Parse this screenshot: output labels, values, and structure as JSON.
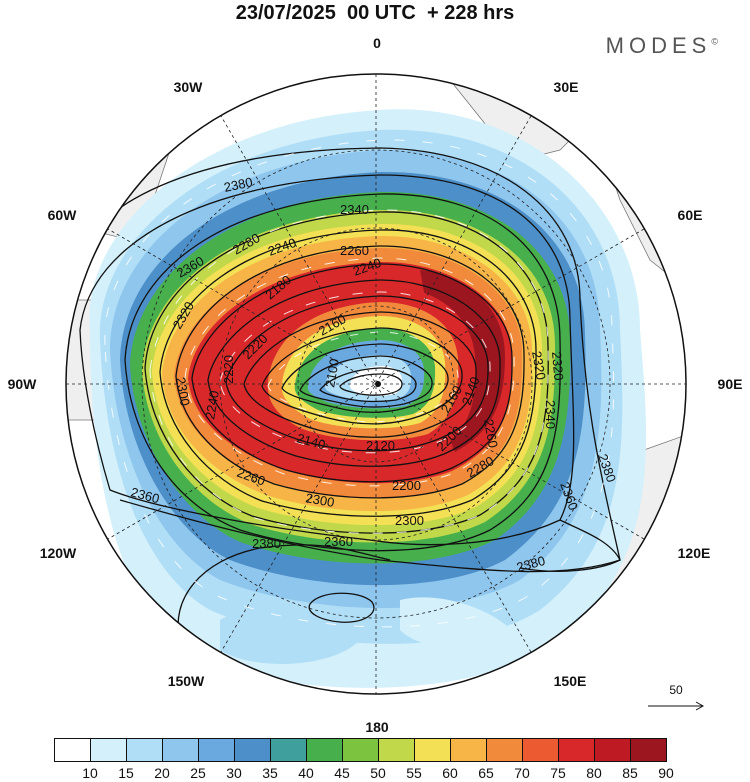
{
  "title": "23/07/2025  00 UTC  + 228 hrs",
  "brand": {
    "name": "MODES",
    "mark": "©"
  },
  "longitude_labels": {
    "lon_0": "0",
    "lon_30e": "30E",
    "lon_60e": "60E",
    "lon_90e": "90E",
    "lon_120e": "120E",
    "lon_150e": "150E",
    "lon_180": "180",
    "lon_150w": "150W",
    "lon_120w": "120W",
    "lon_90w": "90W",
    "lon_60w": "60W",
    "lon_30w": "30W"
  },
  "contour_labels": {
    "c1": "2380",
    "c2": "2360",
    "c3": "2340",
    "c4": "2320",
    "c5": "2300",
    "c6": "2280",
    "c7": "2260",
    "c8": "2240",
    "c9": "2220",
    "c10": "2200",
    "c11": "2180",
    "c12": "2160",
    "c13": "2140",
    "c14": "2120",
    "c15": "2100",
    "c16": "2380",
    "c17": "2380",
    "c18": "2380",
    "c19": "2360",
    "c20": "2360",
    "c21": "2340",
    "c22": "2320",
    "c23": "2300",
    "c24": "2260",
    "c25": "2240",
    "c26": "2220",
    "c27": "2200",
    "c28": "2160",
    "c29": "2140",
    "c30": "2260",
    "c31": "2280",
    "c32": "2240",
    "c33": "2360",
    "c34": "2320",
    "c35": "2300"
  },
  "reference_vector": {
    "label": "50"
  },
  "colorbar": {
    "ticks": [
      "10",
      "15",
      "20",
      "25",
      "30",
      "35",
      "40",
      "45",
      "50",
      "55",
      "60",
      "65",
      "70",
      "75",
      "80",
      "85",
      "90"
    ],
    "colors": [
      "#ffffff",
      "#d3f0fb",
      "#b0def6",
      "#8ec6ee",
      "#6aa9e0",
      "#4d8fc8",
      "#3f9f9c",
      "#47b04d",
      "#7cc43f",
      "#c1d84a",
      "#f4e055",
      "#f7b548",
      "#f28a3c",
      "#eb5a31",
      "#d8282a",
      "#bd1a24",
      "#9c1620"
    ]
  }
}
